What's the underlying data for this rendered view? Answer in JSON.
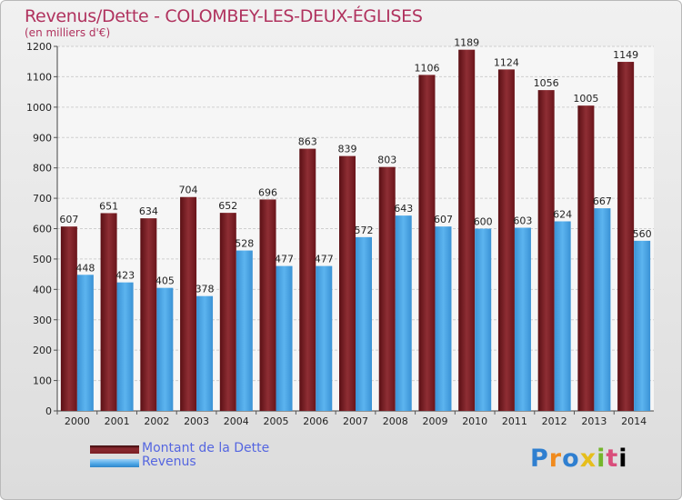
{
  "chart_data": {
    "type": "bar",
    "title": "Revenus/Dette - COLOMBEY-LES-DEUX-ÉGLISES",
    "subtitle": "(en milliers d'€)",
    "categories": [
      "2000",
      "2001",
      "2002",
      "2003",
      "2004",
      "2005",
      "2006",
      "2007",
      "2008",
      "2009",
      "2010",
      "2011",
      "2012",
      "2013",
      "2014"
    ],
    "series": [
      {
        "name": "Montant de la Dette",
        "values": [
          607,
          651,
          634,
          704,
          652,
          696,
          863,
          839,
          803,
          1106,
          1189,
          1124,
          1056,
          1005,
          1149
        ],
        "color": "#7b1f24"
      },
      {
        "name": "Revenus",
        "values": [
          448,
          423,
          405,
          378,
          528,
          477,
          477,
          572,
          643,
          607,
          600,
          603,
          624,
          667,
          560
        ],
        "color": "#4aa4e4"
      }
    ],
    "ylim": [
      0,
      1200
    ],
    "yticks": [
      0,
      100,
      200,
      300,
      400,
      500,
      600,
      700,
      800,
      900,
      1000,
      1100,
      1200
    ],
    "grid": true,
    "legend_position": "bottom-left"
  },
  "logo_text": "Proxiti"
}
